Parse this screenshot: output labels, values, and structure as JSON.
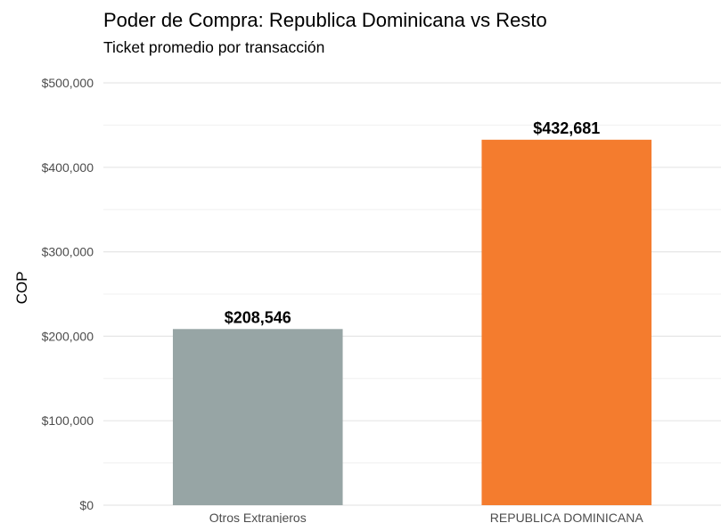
{
  "chart_data": {
    "type": "bar",
    "title": "Poder de Compra: Republica Dominicana vs Resto",
    "subtitle": "Ticket promedio por transacción",
    "xlabel": "",
    "ylabel": "COP",
    "categories": [
      "Otros Extranjeros",
      "REPUBLICA DOMINICANA"
    ],
    "values": [
      208546,
      432681
    ],
    "data_labels": [
      "$208,546",
      "$432,681"
    ],
    "colors": [
      "#97A5A5",
      "#F47C2E"
    ],
    "ylim": [
      0,
      500000
    ],
    "yticks": [
      0,
      100000,
      200000,
      300000,
      400000,
      500000
    ],
    "ytick_labels": [
      "$0",
      "$100,000",
      "$200,000",
      "$300,000",
      "$400,000",
      "$500,000"
    ],
    "grid": true,
    "legend": "none"
  }
}
